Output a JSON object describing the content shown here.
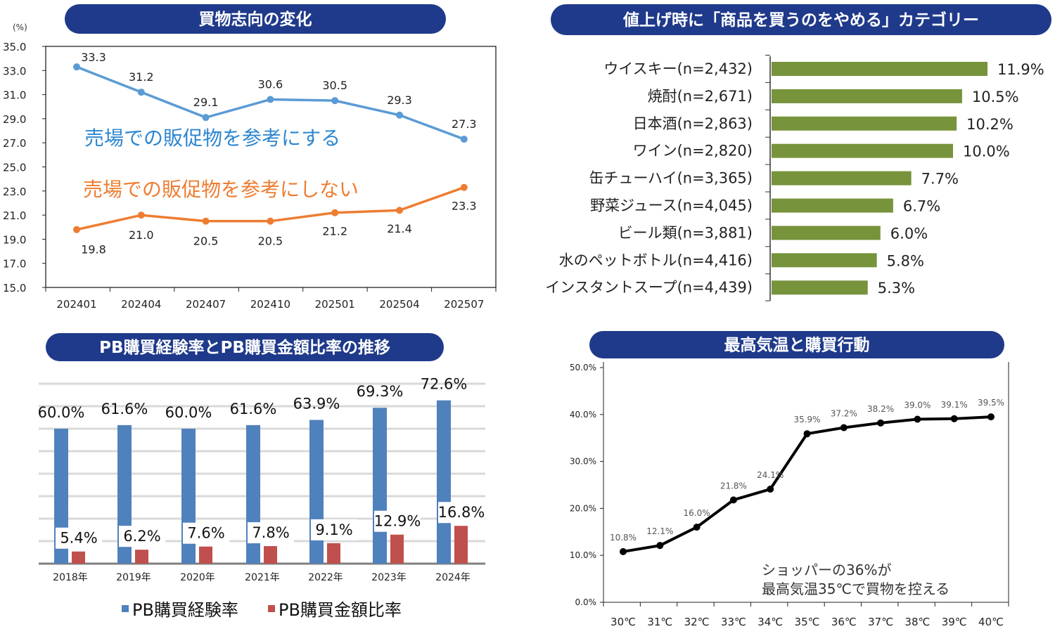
{
  "colors": {
    "title_bg": "#1f3a8a",
    "blue_line": "#5b9bd5",
    "orange_line": "#ed7d31",
    "green_bar": "#77933c",
    "pb_blue": "#4f81bd",
    "pb_red": "#c0504d",
    "black_line": "#000000"
  },
  "chart_data": [
    {
      "type": "line",
      "title": "買物志向の変化",
      "ylabel": "(%)",
      "categories": [
        "202401",
        "202404",
        "202407",
        "202410",
        "202501",
        "202504",
        "202507"
      ],
      "ylim": [
        15,
        35
      ],
      "yticks": [
        "35.0",
        "33.0",
        "31.0",
        "29.0",
        "27.0",
        "25.0",
        "23.0",
        "21.0",
        "19.0",
        "17.0",
        "15.0"
      ],
      "grid": false,
      "series": [
        {
          "name": "売場での販促物を参考にする",
          "values": [
            33.3,
            31.2,
            29.1,
            30.6,
            30.5,
            29.3,
            27.3
          ],
          "labels": [
            "33.3",
            "31.2",
            "29.1",
            "30.6",
            "30.5",
            "29.3",
            "27.3"
          ]
        },
        {
          "name": "売場での販促物を参考にしない",
          "values": [
            19.8,
            21.0,
            20.5,
            20.5,
            21.2,
            21.4,
            23.3
          ],
          "labels": [
            "19.8",
            "21.0",
            "20.5",
            "20.5",
            "21.2",
            "21.4",
            "23.3"
          ]
        }
      ]
    },
    {
      "type": "bar",
      "orientation": "horizontal",
      "title": "値上げ時に「商品を買うのをやめる」カテゴリー",
      "categories": [
        "ウイスキー(n=2,432)",
        "焼酎(n=2,671)",
        "日本酒(n=2,863)",
        "ワイン(n=2,820)",
        "缶チューハイ(n=3,365)",
        "野菜ジュース(n=4,045)",
        "ビール類(n=3,881)",
        "水のペットボトル(n=4,416)",
        "インスタントスープ(n=4,439)"
      ],
      "values": [
        11.9,
        10.5,
        10.2,
        10.0,
        7.7,
        6.7,
        6.0,
        5.8,
        5.3
      ],
      "labels": [
        "11.9%",
        "10.5%",
        "10.2%",
        "10.0%",
        "7.7%",
        "6.7%",
        "6.0%",
        "5.8%",
        "5.3%"
      ]
    },
    {
      "type": "bar",
      "title": "PB購買経験率とPB購買金額比率の推移",
      "categories": [
        "2018年",
        "2019年",
        "2020年",
        "2021年",
        "2022年",
        "2023年",
        "2024年"
      ],
      "ylim": [
        0,
        80
      ],
      "grid": true,
      "legend": "bottom",
      "series": [
        {
          "name": "PB購買経験率",
          "values": [
            60.0,
            61.6,
            60.0,
            61.6,
            63.9,
            69.3,
            72.6
          ],
          "labels": [
            "60.0%",
            "61.6%",
            "60.0%",
            "61.6%",
            "63.9%",
            "69.3%",
            "72.6%"
          ]
        },
        {
          "name": "PB購買金額比率",
          "values": [
            5.4,
            6.2,
            7.6,
            7.8,
            9.1,
            12.9,
            16.8
          ],
          "labels": [
            "5.4%",
            "6.2%",
            "7.6%",
            "7.8%",
            "9.1%",
            "12.9%",
            "16.8%"
          ]
        }
      ]
    },
    {
      "type": "line",
      "title": "最高気温と購買行動",
      "categories": [
        "30℃",
        "31℃",
        "32℃",
        "33℃",
        "34℃",
        "35℃",
        "36℃",
        "37℃",
        "38℃",
        "39℃",
        "40℃"
      ],
      "ylim": [
        0,
        50
      ],
      "yticks": [
        "50.0%",
        "40.0%",
        "30.0%",
        "20.0%",
        "10.0%",
        "0.0%"
      ],
      "grid": false,
      "series": [
        {
          "values": [
            10.8,
            12.1,
            16.0,
            21.8,
            24.1,
            35.9,
            37.2,
            38.2,
            39.0,
            39.1,
            39.5
          ],
          "labels": [
            "10.8%",
            "12.1%",
            "16.0%",
            "21.8%",
            "24.1%",
            "35.9%",
            "37.2%",
            "38.2%",
            "39.0%",
            "39.1%",
            "39.5%"
          ]
        }
      ],
      "annotation": [
        "ショッパーの36%が",
        "最高気温35℃で買物を控える"
      ]
    }
  ]
}
